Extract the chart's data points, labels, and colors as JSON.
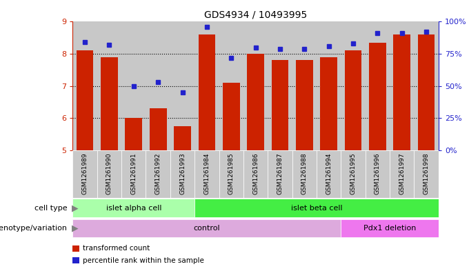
{
  "title": "GDS4934 / 10493995",
  "samples": [
    "GSM1261989",
    "GSM1261990",
    "GSM1261991",
    "GSM1261992",
    "GSM1261993",
    "GSM1261984",
    "GSM1261985",
    "GSM1261986",
    "GSM1261987",
    "GSM1261988",
    "GSM1261994",
    "GSM1261995",
    "GSM1261996",
    "GSM1261997",
    "GSM1261998"
  ],
  "transformed_count": [
    8.1,
    7.9,
    6.0,
    6.3,
    5.75,
    8.6,
    7.1,
    8.0,
    7.8,
    7.8,
    7.9,
    8.1,
    8.35,
    8.6,
    8.6
  ],
  "percentile_rank": [
    84,
    82,
    50,
    53,
    45,
    96,
    72,
    80,
    79,
    79,
    81,
    83,
    91,
    91,
    92
  ],
  "ylim_left": [
    5,
    9
  ],
  "ylim_right": [
    0,
    100
  ],
  "yticks_left": [
    5,
    6,
    7,
    8,
    9
  ],
  "yticks_right": [
    0,
    25,
    50,
    75,
    100
  ],
  "ytick_labels_right": [
    "0%",
    "25%",
    "50%",
    "75%",
    "100%"
  ],
  "bar_color": "#cc2200",
  "dot_color": "#2222cc",
  "col_bg_color": "#c8c8c8",
  "cell_type_groups": [
    {
      "label": "islet alpha cell",
      "start": 0,
      "end": 5,
      "color": "#aaffaa"
    },
    {
      "label": "islet beta cell",
      "start": 5,
      "end": 15,
      "color": "#44ee44"
    }
  ],
  "genotype_groups": [
    {
      "label": "control",
      "start": 0,
      "end": 11,
      "color": "#ddaadd"
    },
    {
      "label": "Pdx1 deletion",
      "start": 11,
      "end": 15,
      "color": "#ee77ee"
    }
  ],
  "legend_items": [
    {
      "color": "#cc2200",
      "label": "transformed count"
    },
    {
      "color": "#2222cc",
      "label": "percentile rank within the sample"
    }
  ],
  "row_labels": [
    "cell type",
    "genotype/variation"
  ]
}
